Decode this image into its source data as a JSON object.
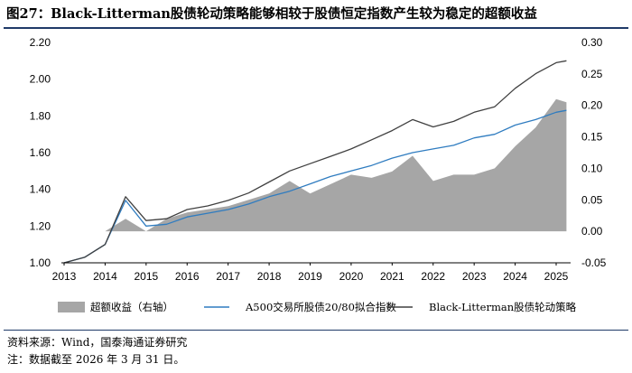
{
  "header": {
    "title": "图27：Black-Litterman股债轮动策略能够相较于股债恒定指数产生较为稳定的超额收益"
  },
  "footer": {
    "source": "资料来源：Wind，国泰海通证券研究",
    "date_note": "注：数据截至 2026 年 3 月 31 日。"
  },
  "colors": {
    "excess": "#a6a6a6",
    "benchmark": "#2f7cc0",
    "strategy": "#404040",
    "title_rule": "#1f3a68"
  },
  "chart_data": {
    "type": "line",
    "title": "",
    "xlabel": "",
    "ylabel": "",
    "x": [
      "2013",
      "2013.5",
      "2014",
      "2014.5",
      "2015",
      "2015.5",
      "2016",
      "2016.5",
      "2017",
      "2017.5",
      "2018",
      "2018.5",
      "2019",
      "2019.5",
      "2020",
      "2020.5",
      "2021",
      "2021.5",
      "2022",
      "2022.5",
      "2023",
      "2023.5",
      "2024",
      "2024.5",
      "2025",
      "2025.25"
    ],
    "x_ticks": [
      "2013",
      "2014",
      "2015",
      "2016",
      "2017",
      "2018",
      "2019",
      "2020",
      "2021",
      "2022",
      "2023",
      "2024",
      "2025"
    ],
    "ylim_left": [
      1.0,
      2.2
    ],
    "yticks_left": [
      "1.00",
      "1.20",
      "1.40",
      "1.60",
      "1.80",
      "2.00",
      "2.20"
    ],
    "ylim_right": [
      -0.05,
      0.3
    ],
    "yticks_right": [
      "-0.05",
      "0.00",
      "0.05",
      "0.10",
      "0.15",
      "0.20",
      "0.25",
      "0.30"
    ],
    "grid": false,
    "legend_position": "bottom",
    "series": [
      {
        "name": "超额收益（右轴）",
        "axis": "right",
        "kind": "area",
        "values": [
          0.0,
          0.0,
          0.0,
          0.02,
          0.0,
          0.02,
          0.03,
          0.035,
          0.04,
          0.05,
          0.06,
          0.08,
          0.06,
          0.075,
          0.09,
          0.085,
          0.095,
          0.12,
          0.08,
          0.09,
          0.09,
          0.1,
          0.135,
          0.165,
          0.21,
          0.205
        ]
      },
      {
        "name": "A500交易所股债20/80拟合指数",
        "axis": "left",
        "kind": "line",
        "values": [
          1.0,
          1.03,
          1.1,
          1.34,
          1.2,
          1.21,
          1.25,
          1.27,
          1.29,
          1.32,
          1.36,
          1.39,
          1.43,
          1.47,
          1.5,
          1.53,
          1.57,
          1.6,
          1.62,
          1.64,
          1.68,
          1.7,
          1.75,
          1.78,
          1.82,
          1.83
        ]
      },
      {
        "name": "Black-Litterman股债轮动策略",
        "axis": "left",
        "kind": "line",
        "values": [
          1.0,
          1.03,
          1.1,
          1.36,
          1.23,
          1.24,
          1.29,
          1.31,
          1.34,
          1.38,
          1.44,
          1.5,
          1.54,
          1.58,
          1.62,
          1.67,
          1.72,
          1.78,
          1.74,
          1.77,
          1.82,
          1.85,
          1.95,
          2.03,
          2.09,
          2.1
        ]
      }
    ]
  }
}
